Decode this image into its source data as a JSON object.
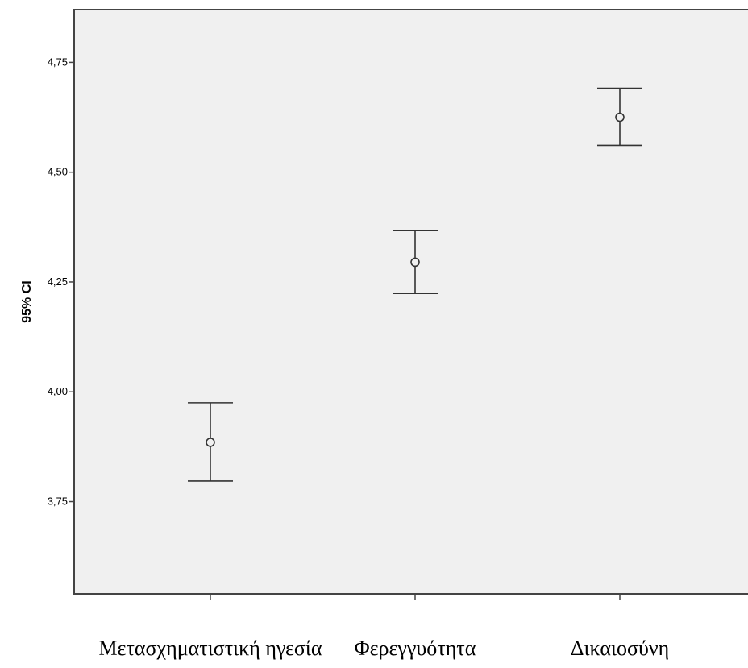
{
  "chart_data": {
    "type": "errorbar",
    "title": "",
    "xlabel": "",
    "ylabel": "95% CI",
    "categories": [
      "Μετασχηματιστική ηγεσία",
      "Φερεγγυότητα",
      "Δικαιοσύνη"
    ],
    "means": [
      3.885,
      4.295,
      4.625
    ],
    "lower": [
      3.797,
      4.224,
      4.561
    ],
    "upper": [
      3.975,
      4.367,
      4.691
    ],
    "ylim": [
      3.54,
      4.87
    ],
    "yticks": [
      3.75,
      4.0,
      4.25,
      4.5,
      4.75
    ],
    "ytick_labels": [
      "3,75",
      "4,00",
      "4,25",
      "4,50",
      "4,75"
    ],
    "grid": false,
    "legend": "none",
    "colors": {
      "plot_background": "#f0f0f0",
      "frame": "#444444",
      "marker": "#333333",
      "page_background": "#ffffff"
    }
  }
}
